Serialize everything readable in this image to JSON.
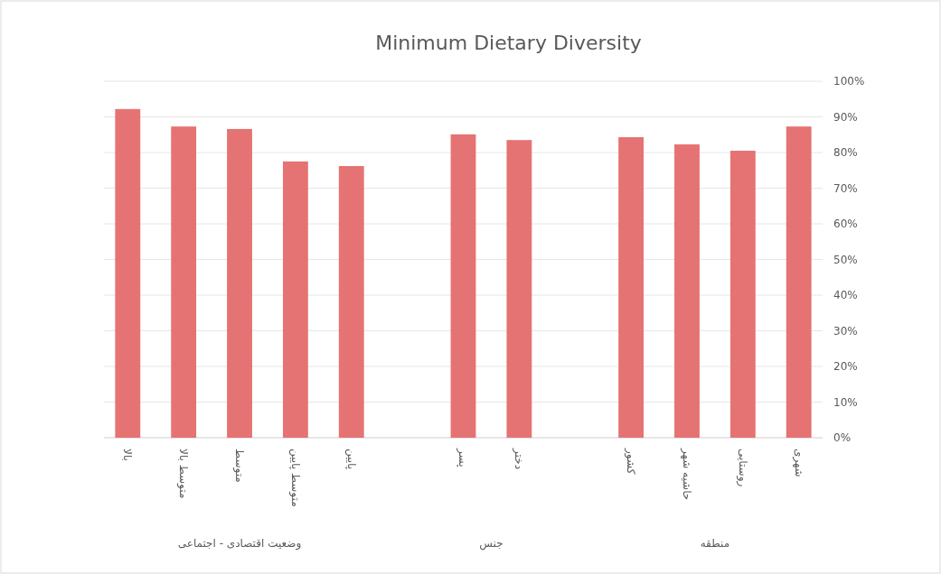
{
  "chart_data": {
    "type": "bar",
    "title": "Minimum Dietary Diversity",
    "categories": [
      "بالا",
      "متوسط بالا",
      "متوسط",
      "متوسط پایین",
      "پایین",
      null,
      "پسر",
      "دختر",
      null,
      "کشور",
      "حاشیه شهر",
      "روستایی",
      "شهری"
    ],
    "values": [
      92.2,
      87.3,
      86.6,
      77.5,
      76.2,
      null,
      85.1,
      83.5,
      null,
      84.3,
      82.3,
      80.5,
      87.3
    ],
    "color": "#e57373",
    "ylim": [
      0,
      100
    ],
    "yticks": [
      {
        "value": 0,
        "label": "0%"
      },
      {
        "value": 10,
        "label": "10%"
      },
      {
        "value": 20,
        "label": "20%"
      },
      {
        "value": 30,
        "label": "30%"
      },
      {
        "value": 40,
        "label": "40%"
      },
      {
        "value": 50,
        "label": "50%"
      },
      {
        "value": 60,
        "label": "60%"
      },
      {
        "value": 70,
        "label": "70%"
      },
      {
        "value": 80,
        "label": "80%"
      },
      {
        "value": 90,
        "label": "90%"
      },
      {
        "value": 100,
        "label": "100%"
      }
    ],
    "grid": "y",
    "annotations": [
      "وضعیت اقتصادی - اجتماعی",
      "جنس",
      "منطقه"
    ]
  }
}
